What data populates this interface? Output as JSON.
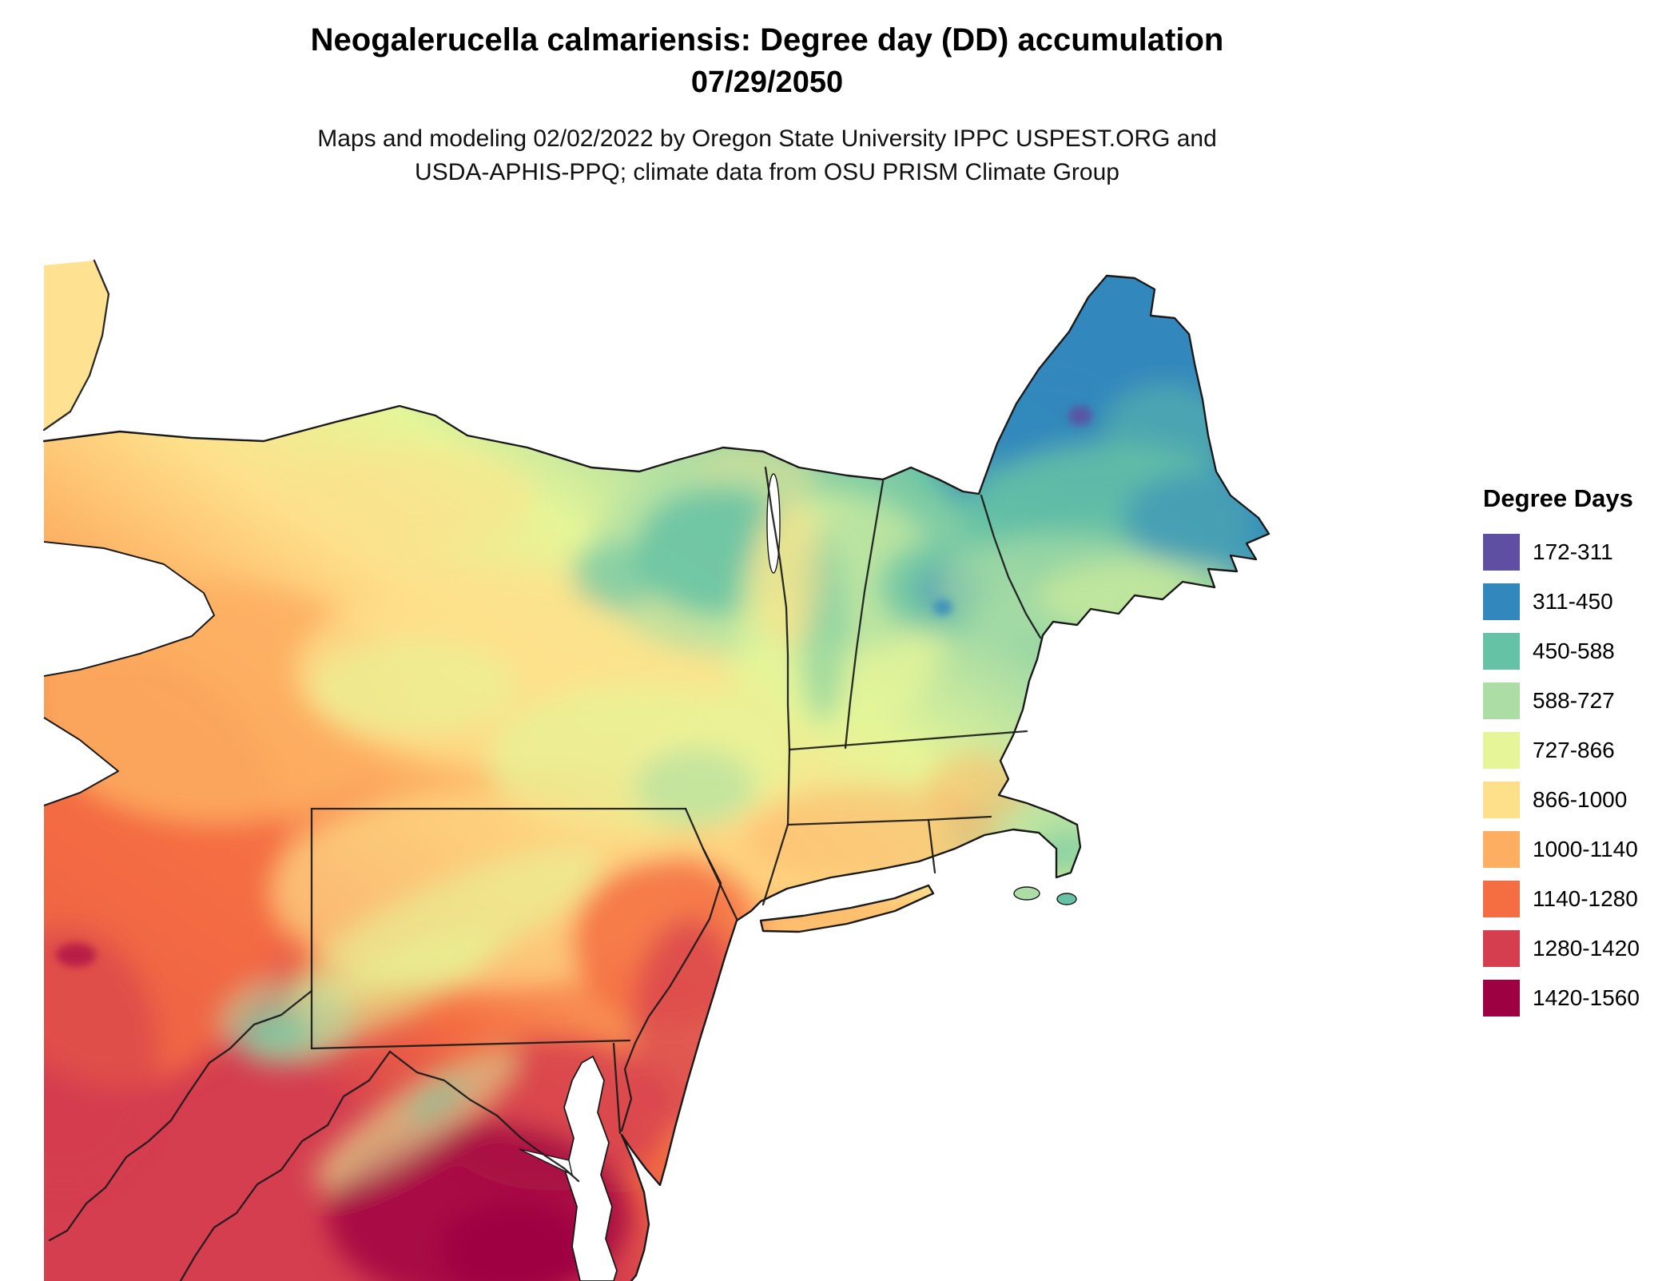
{
  "header": {
    "title": "Neogalerucella calmariensis: Degree day (DD) accumulation",
    "date": "07/29/2050",
    "credits_line1": "Maps and modeling 02/02/2022 by Oregon State University IPPC USPEST.ORG and",
    "credits_line2": "USDA-APHIS-PPQ; climate data from OSU PRISM Climate Group"
  },
  "legend": {
    "title": "Degree Days",
    "items": [
      {
        "label": "172-311",
        "color": "#5e4fa2"
      },
      {
        "label": "311-450",
        "color": "#3288bd"
      },
      {
        "label": "450-588",
        "color": "#66c2a5"
      },
      {
        "label": "588-727",
        "color": "#abdda4"
      },
      {
        "label": "727-866",
        "color": "#e6f598"
      },
      {
        "label": "866-1000",
        "color": "#fee08b"
      },
      {
        "label": "1000-1140",
        "color": "#fdae61"
      },
      {
        "label": "1140-1280",
        "color": "#f46d43"
      },
      {
        "label": "1280-1420",
        "color": "#d53e4f"
      },
      {
        "label": "1420-1560",
        "color": "#9e0142"
      }
    ]
  }
}
